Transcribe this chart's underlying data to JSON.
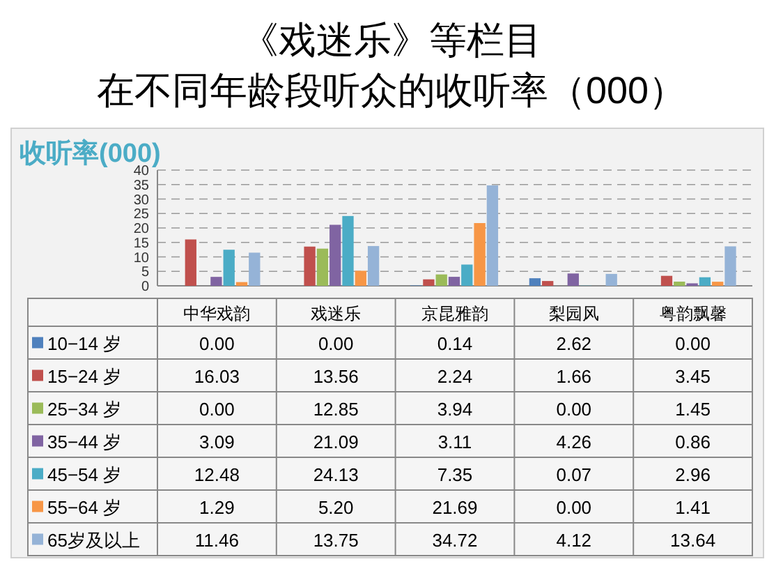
{
  "chart_data": {
    "type": "bar",
    "title": "《戏迷乐》等栏目",
    "subtitle": "在不同年龄段听众的收听率（000）",
    "ylabel": "收听率(000)",
    "categories": [
      "中华戏韵",
      "戏迷乐",
      "京昆雅韵",
      "梨园风",
      "粤韵飘馨"
    ],
    "series": [
      {
        "name": "10−14 岁",
        "color": "#4f81bd",
        "values": [
          0,
          0,
          0.14,
          2.62,
          0
        ],
        "value_labels": [
          "0.00",
          "0.00",
          "0.14",
          "2.62",
          "0.00"
        ]
      },
      {
        "name": "15−24 岁",
        "color": "#c0504d",
        "values": [
          16.03,
          13.56,
          2.24,
          1.66,
          3.45
        ],
        "value_labels": [
          "16.03",
          "13.56",
          "2.24",
          "1.66",
          "3.45"
        ]
      },
      {
        "name": "25−34 岁",
        "color": "#9bbb59",
        "values": [
          0,
          12.85,
          3.94,
          0,
          1.45
        ],
        "value_labels": [
          "0.00",
          "12.85",
          "3.94",
          "0.00",
          "1.45"
        ]
      },
      {
        "name": "35−44 岁",
        "color": "#8064a2",
        "values": [
          3.09,
          21.09,
          3.11,
          4.26,
          0.86
        ],
        "value_labels": [
          "3.09",
          "21.09",
          "3.11",
          "4.26",
          "0.86"
        ]
      },
      {
        "name": "45−54 岁",
        "color": "#4bacc6",
        "values": [
          12.48,
          24.13,
          7.35,
          0.07,
          2.96
        ],
        "value_labels": [
          "12.48",
          "24.13",
          "7.35",
          "0.07",
          "2.96"
        ]
      },
      {
        "name": "55−64 岁",
        "color": "#f79646",
        "values": [
          1.29,
          5.2,
          21.69,
          0,
          1.41
        ],
        "value_labels": [
          "1.29",
          "5.20",
          "21.69",
          "0.00",
          "1.41"
        ]
      },
      {
        "name": "65岁及以上",
        "color": "#95b3d7",
        "values": [
          11.46,
          13.75,
          34.72,
          4.12,
          13.64
        ],
        "value_labels": [
          "11.46",
          "13.75",
          "34.72",
          "4.12",
          "13.64"
        ]
      }
    ],
    "ylim": [
      0,
      40
    ],
    "yticks": [
      0,
      5,
      10,
      15,
      20,
      25,
      30,
      35,
      40
    ],
    "grid": "y",
    "legend": "bottom"
  }
}
